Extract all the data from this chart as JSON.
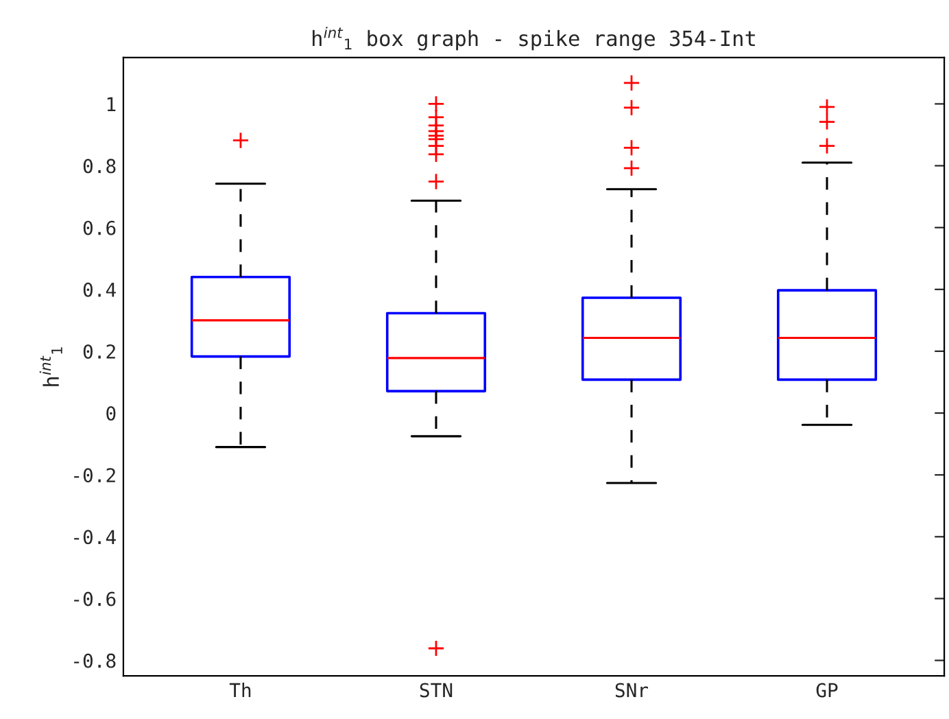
{
  "chart_data": {
    "type": "box",
    "title": "h$^{int}$$_{1}$ box graph - spike range 354-Int",
    "ylabel": "h$^{int}$$_{1}$",
    "categories": [
      "Th",
      "STN",
      "SNr",
      "GP"
    ],
    "series": [
      {
        "color": "#0000ff",
        "boxes": [
          {
            "low": -0.11,
            "q1": 0.183,
            "median": 0.3,
            "q3": 0.44,
            "high": 0.742,
            "outliers": [
              0.882
            ]
          },
          {
            "low": -0.075,
            "q1": 0.071,
            "median": 0.178,
            "q3": 0.323,
            "high": 0.687,
            "outliers": [
              1.0,
              0.957,
              0.93,
              0.912,
              0.897,
              0.886,
              0.864,
              0.837,
              0.749,
              -0.761
            ]
          },
          {
            "low": -0.226,
            "q1": 0.108,
            "median": 0.243,
            "q3": 0.373,
            "high": 0.724,
            "outliers": [
              1.068,
              0.988,
              0.858,
              0.792
            ]
          },
          {
            "low": -0.038,
            "q1": 0.108,
            "median": 0.243,
            "q3": 0.397,
            "high": 0.81,
            "outliers": [
              0.99,
              0.942,
              0.864
            ]
          }
        ]
      }
    ],
    "ylim": [
      -0.85,
      1.15
    ],
    "yticks": [
      -0.8,
      -0.6,
      -0.4,
      -0.2,
      0,
      0.2,
      0.4,
      0.6,
      0.8,
      1
    ],
    "grid": false,
    "legend": false
  }
}
